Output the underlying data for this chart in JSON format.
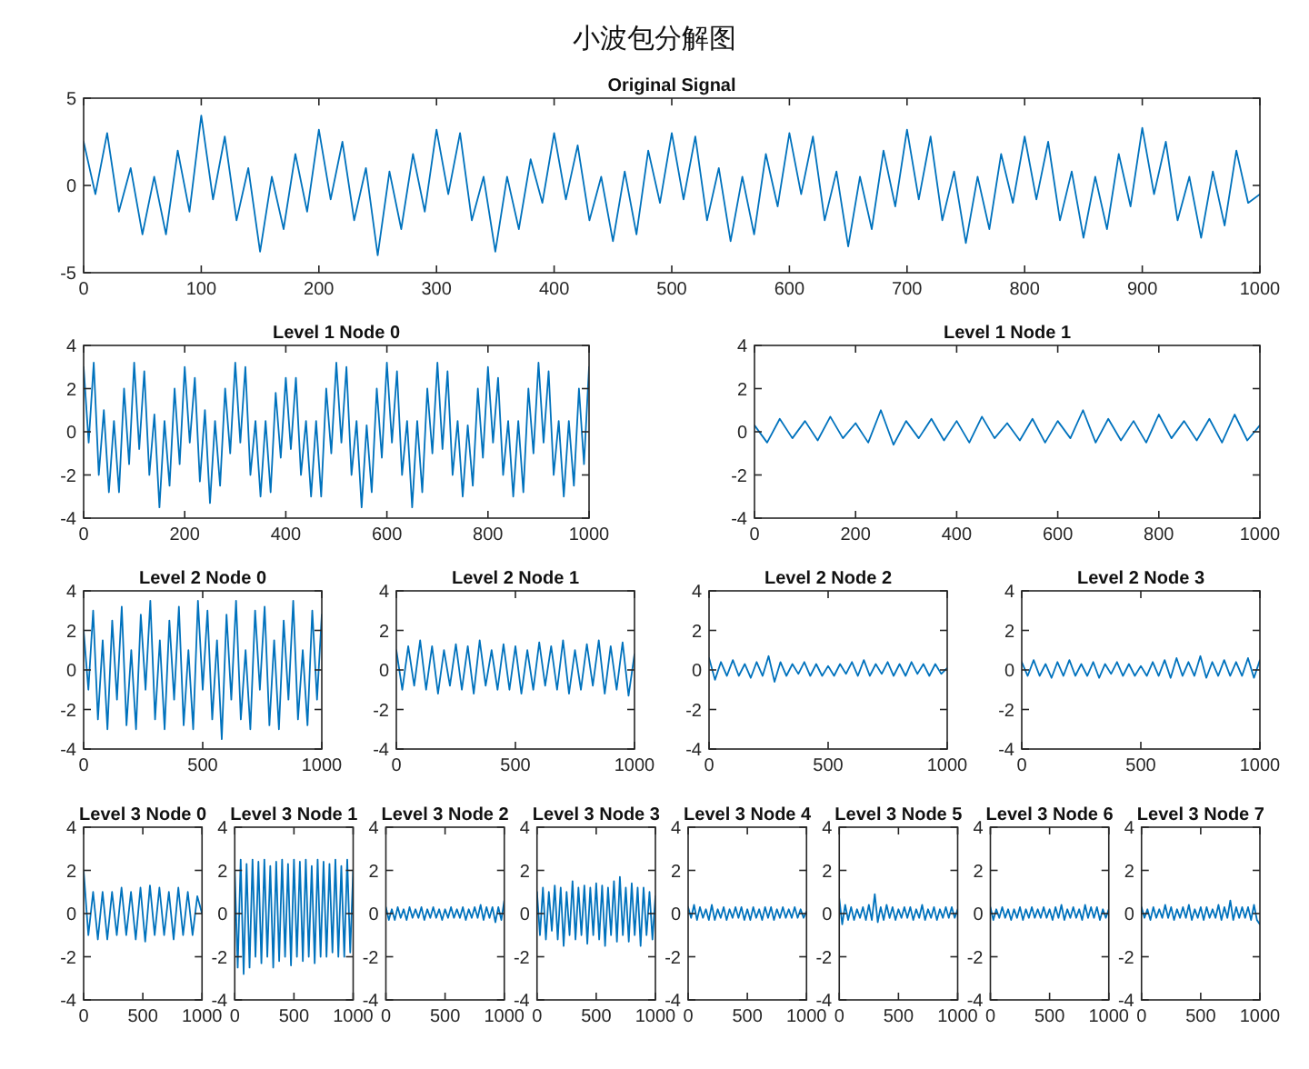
{
  "chart_data": [
    {
      "type": "other",
      "title": "小波包分解图"
    },
    {
      "type": "line",
      "title": "Original Signal",
      "color": "#0072bd",
      "xlim": [
        0,
        1000
      ],
      "ylim": [
        -5,
        5
      ],
      "xticks": [
        0,
        100,
        200,
        300,
        400,
        500,
        600,
        700,
        800,
        900,
        1000
      ],
      "yticks": [
        -5,
        0,
        5
      ],
      "x": [
        0,
        10,
        20,
        30,
        40,
        50,
        60,
        70,
        80,
        90,
        100,
        110,
        120,
        130,
        140,
        150,
        160,
        170,
        180,
        190,
        200,
        210,
        220,
        230,
        240,
        250,
        260,
        270,
        280,
        290,
        300,
        310,
        320,
        330,
        340,
        350,
        360,
        370,
        380,
        390,
        400,
        410,
        420,
        430,
        440,
        450,
        460,
        470,
        480,
        490,
        500,
        510,
        520,
        530,
        540,
        550,
        560,
        570,
        580,
        590,
        600,
        610,
        620,
        630,
        640,
        650,
        660,
        670,
        680,
        690,
        700,
        710,
        720,
        730,
        740,
        750,
        760,
        770,
        780,
        790,
        800,
        810,
        820,
        830,
        840,
        850,
        860,
        870,
        880,
        890,
        900,
        910,
        920,
        930,
        940,
        950,
        960,
        970,
        980,
        990,
        1000
      ],
      "values": [
        2.5,
        -0.5,
        3,
        -1.5,
        1,
        -2.8,
        0.5,
        -2.8,
        2,
        -1.5,
        4,
        -0.8,
        2.8,
        -2,
        1,
        -3.8,
        0.5,
        -2.5,
        1.8,
        -1.5,
        3.2,
        -0.8,
        2.5,
        -2,
        1,
        -4,
        0.8,
        -2.5,
        1.8,
        -1.5,
        3.2,
        -0.5,
        3,
        -2,
        0.5,
        -3.8,
        0.5,
        -2.5,
        1.5,
        -1,
        3,
        -0.8,
        2.3,
        -2,
        0.5,
        -3.2,
        0.8,
        -2.8,
        2,
        -1,
        3,
        -0.8,
        2.8,
        -2,
        1,
        -3.2,
        0.5,
        -2.8,
        1.8,
        -1.2,
        3,
        -0.5,
        2.8,
        -2,
        0.8,
        -3.5,
        0.5,
        -2.5,
        2,
        -1.2,
        3.2,
        -0.8,
        2.8,
        -2,
        0.8,
        -3.3,
        0.5,
        -2.5,
        1.8,
        -1,
        2.8,
        -0.8,
        2.5,
        -2,
        0.8,
        -3,
        0.5,
        -2.5,
        1.8,
        -1.2,
        3.3,
        -0.5,
        2.5,
        -2,
        0.5,
        -3,
        0.8,
        -2.3,
        2,
        -1,
        -0.5
      ]
    },
    {
      "type": "line",
      "title": "Level 1 Node 0",
      "color": "#0072bd",
      "xlim": [
        0,
        1000
      ],
      "ylim": [
        -4,
        4
      ],
      "xticks": [
        0,
        200,
        400,
        600,
        800,
        1000
      ],
      "yticks": [
        -4,
        -2,
        0,
        2,
        4
      ],
      "x": [
        0,
        10,
        20,
        30,
        40,
        50,
        60,
        70,
        80,
        90,
        100,
        110,
        120,
        130,
        140,
        150,
        160,
        170,
        180,
        190,
        200,
        210,
        220,
        230,
        240,
        250,
        260,
        270,
        280,
        290,
        300,
        310,
        320,
        330,
        340,
        350,
        360,
        370,
        380,
        390,
        400,
        410,
        420,
        430,
        440,
        450,
        460,
        470,
        480,
        490,
        500,
        510,
        520,
        530,
        540,
        550,
        560,
        570,
        580,
        590,
        600,
        610,
        620,
        630,
        640,
        650,
        660,
        670,
        680,
        690,
        700,
        710,
        720,
        730,
        740,
        750,
        760,
        770,
        780,
        790,
        800,
        810,
        820,
        830,
        840,
        850,
        860,
        870,
        880,
        890,
        900,
        910,
        920,
        930,
        940,
        950,
        960,
        970,
        980,
        990,
        1000
      ],
      "values": [
        3,
        -0.5,
        3.2,
        -2,
        1,
        -2.8,
        0.5,
        -2.8,
        2,
        -1.5,
        3.2,
        -0.8,
        2.8,
        -2,
        0.8,
        -3.5,
        0.5,
        -2.5,
        2,
        -1.5,
        3,
        -0.5,
        2.5,
        -2.3,
        1,
        -3.3,
        0.5,
        -2.5,
        2,
        -1,
        3.2,
        -0.5,
        3,
        -2,
        0.5,
        -3,
        0.5,
        -2.8,
        1.8,
        -1.2,
        2.5,
        -0.8,
        2.5,
        -2,
        0.5,
        -3,
        0.5,
        -3,
        2,
        -1,
        3.2,
        -0.5,
        3,
        -2,
        0.5,
        -3.5,
        0.3,
        -2.8,
        2,
        -1.2,
        3.2,
        -0.5,
        2.8,
        -2,
        0.5,
        -3.5,
        0.5,
        -2.8,
        2,
        -1,
        3.2,
        -0.8,
        2.8,
        -2,
        0.5,
        -3,
        0.3,
        -2.5,
        2,
        -1.2,
        3,
        -0.5,
        2.5,
        -2,
        0.5,
        -3,
        0.5,
        -2.8,
        2,
        -1,
        3.2,
        -0.5,
        2.8,
        -2,
        0.5,
        -3,
        0.5,
        -2.5,
        2,
        -1.5,
        3
      ]
    },
    {
      "type": "line",
      "title": "Level 1 Node 1",
      "color": "#0072bd",
      "xlim": [
        0,
        1000
      ],
      "ylim": [
        -4,
        4
      ],
      "xticks": [
        0,
        200,
        400,
        600,
        800,
        1000
      ],
      "yticks": [
        -4,
        -2,
        0,
        2,
        4
      ],
      "x": [
        0,
        25,
        50,
        75,
        100,
        125,
        150,
        175,
        200,
        225,
        250,
        275,
        300,
        325,
        350,
        375,
        400,
        425,
        450,
        475,
        500,
        525,
        550,
        575,
        600,
        625,
        650,
        675,
        700,
        725,
        750,
        775,
        800,
        825,
        850,
        875,
        900,
        925,
        950,
        975,
        1000
      ],
      "values": [
        0.3,
        -0.5,
        0.6,
        -0.3,
        0.5,
        -0.4,
        0.7,
        -0.3,
        0.4,
        -0.5,
        1,
        -0.6,
        0.5,
        -0.3,
        0.6,
        -0.4,
        0.5,
        -0.5,
        0.7,
        -0.3,
        0.4,
        -0.4,
        0.6,
        -0.5,
        0.5,
        -0.3,
        1,
        -0.5,
        0.6,
        -0.4,
        0.5,
        -0.5,
        0.8,
        -0.3,
        0.5,
        -0.4,
        0.6,
        -0.5,
        0.8,
        -0.4,
        0.3
      ]
    },
    {
      "type": "line",
      "title": "Level 2 Node 0",
      "color": "#0072bd",
      "xlim": [
        0,
        1000
      ],
      "ylim": [
        -4,
        4
      ],
      "xticks": [
        0,
        500,
        1000
      ],
      "yticks": [
        -4,
        -2,
        0,
        2,
        4
      ],
      "x": [
        0,
        20,
        40,
        60,
        80,
        100,
        120,
        140,
        160,
        180,
        200,
        220,
        240,
        260,
        280,
        300,
        320,
        340,
        360,
        380,
        400,
        420,
        440,
        460,
        480,
        500,
        520,
        540,
        560,
        580,
        600,
        620,
        640,
        660,
        680,
        700,
        720,
        740,
        760,
        780,
        800,
        820,
        840,
        860,
        880,
        900,
        920,
        940,
        960,
        980,
        1000
      ],
      "values": [
        2,
        -1,
        3,
        -2.5,
        1.5,
        -3,
        2.5,
        -1.5,
        3.2,
        -2.8,
        1,
        -3,
        2.8,
        -1,
        3.5,
        -2.5,
        1.5,
        -3,
        2.5,
        -1.5,
        3.2,
        -2.8,
        1,
        -3,
        3.5,
        -1,
        3,
        -2.5,
        1.5,
        -3.5,
        2.8,
        -1.5,
        3.5,
        -2.5,
        1,
        -3,
        3,
        -1,
        3.2,
        -2.8,
        1.5,
        -3,
        2.5,
        -1.5,
        3.5,
        -2.5,
        1,
        -2.8,
        3,
        -1.5,
        2.8
      ]
    },
    {
      "type": "line",
      "title": "Level 2 Node 1",
      "color": "#0072bd",
      "xlim": [
        0,
        1000
      ],
      "ylim": [
        -4,
        4
      ],
      "xticks": [
        0,
        500,
        1000
      ],
      "yticks": [
        -4,
        -2,
        0,
        2,
        4
      ],
      "x": [
        0,
        25,
        50,
        75,
        100,
        125,
        150,
        175,
        200,
        225,
        250,
        275,
        300,
        325,
        350,
        375,
        400,
        425,
        450,
        475,
        500,
        525,
        550,
        575,
        600,
        625,
        650,
        675,
        700,
        725,
        750,
        775,
        800,
        825,
        850,
        875,
        900,
        925,
        950,
        975,
        1000
      ],
      "values": [
        1,
        -1,
        1.2,
        -0.8,
        1.5,
        -1,
        1.2,
        -1.2,
        1,
        -0.8,
        1.3,
        -1,
        1.2,
        -1.2,
        1.5,
        -0.8,
        1,
        -1,
        1.3,
        -1,
        1.2,
        -1.2,
        1,
        -1,
        1.4,
        -0.8,
        1.2,
        -1,
        1.5,
        -1.2,
        1,
        -1,
        1.3,
        -0.8,
        1.5,
        -1.2,
        1.2,
        -1,
        1.4,
        -1.3,
        0.8
      ]
    },
    {
      "type": "line",
      "title": "Level 2 Node 2",
      "color": "#0072bd",
      "xlim": [
        0,
        1000
      ],
      "ylim": [
        -4,
        4
      ],
      "xticks": [
        0,
        500,
        1000
      ],
      "yticks": [
        -4,
        -2,
        0,
        2,
        4
      ],
      "x": [
        0,
        25,
        50,
        75,
        100,
        125,
        150,
        175,
        200,
        225,
        250,
        275,
        300,
        325,
        350,
        375,
        400,
        425,
        450,
        475,
        500,
        525,
        550,
        575,
        600,
        625,
        650,
        675,
        700,
        725,
        750,
        775,
        800,
        825,
        850,
        875,
        900,
        925,
        950,
        975,
        1000
      ],
      "values": [
        0.6,
        -0.5,
        0.4,
        -0.3,
        0.5,
        -0.3,
        0.3,
        -0.4,
        0.4,
        -0.3,
        0.7,
        -0.6,
        0.4,
        -0.3,
        0.3,
        -0.2,
        0.4,
        -0.3,
        0.3,
        -0.3,
        0.2,
        -0.3,
        0.3,
        -0.2,
        0.4,
        -0.3,
        0.5,
        -0.3,
        0.3,
        -0.2,
        0.4,
        -0.3,
        0.3,
        -0.3,
        0.4,
        -0.2,
        0.3,
        -0.3,
        0.3,
        -0.2,
        0.1
      ]
    },
    {
      "type": "line",
      "title": "Level 2 Node 3",
      "color": "#0072bd",
      "xlim": [
        0,
        1000
      ],
      "ylim": [
        -4,
        4
      ],
      "xticks": [
        0,
        500,
        1000
      ],
      "yticks": [
        -4,
        -2,
        0,
        2,
        4
      ],
      "x": [
        0,
        25,
        50,
        75,
        100,
        125,
        150,
        175,
        200,
        225,
        250,
        275,
        300,
        325,
        350,
        375,
        400,
        425,
        450,
        475,
        500,
        525,
        550,
        575,
        600,
        625,
        650,
        675,
        700,
        725,
        750,
        775,
        800,
        825,
        850,
        875,
        900,
        925,
        950,
        975,
        1000
      ],
      "values": [
        0.4,
        -0.3,
        0.5,
        -0.3,
        0.3,
        -0.4,
        0.4,
        -0.3,
        0.5,
        -0.3,
        0.3,
        -0.3,
        0.4,
        -0.4,
        0.3,
        -0.2,
        0.4,
        -0.3,
        0.3,
        -0.3,
        0.2,
        -0.3,
        0.4,
        -0.3,
        0.5,
        -0.4,
        0.6,
        -0.3,
        0.4,
        -0.3,
        0.7,
        -0.4,
        0.4,
        -0.3,
        0.5,
        -0.3,
        0.4,
        -0.3,
        0.6,
        -0.4,
        0.5
      ]
    },
    {
      "type": "line",
      "title": "Level 3 Node 0",
      "color": "#0072bd",
      "xlim": [
        0,
        1000
      ],
      "ylim": [
        -4,
        4
      ],
      "xticks": [
        0,
        500,
        1000
      ],
      "yticks": [
        -4,
        -2,
        0,
        2,
        4
      ],
      "x": [
        0,
        40,
        80,
        120,
        160,
        200,
        240,
        280,
        320,
        360,
        400,
        440,
        480,
        520,
        560,
        600,
        640,
        680,
        720,
        760,
        800,
        840,
        880,
        920,
        960,
        1000
      ],
      "values": [
        2,
        -1,
        1,
        -1.2,
        1,
        -1.2,
        1,
        -1,
        1.2,
        -1,
        1,
        -1.2,
        1.2,
        -1.3,
        1.3,
        -1,
        1.2,
        -1,
        1,
        -1.2,
        1.2,
        -1,
        1,
        -1,
        0.8,
        0
      ]
    },
    {
      "type": "line",
      "title": "Level 3 Node 1",
      "color": "#0072bd",
      "xlim": [
        0,
        1000
      ],
      "ylim": [
        -4,
        4
      ],
      "xticks": [
        0,
        500,
        1000
      ],
      "yticks": [
        -4,
        -2,
        0,
        2,
        4
      ],
      "x": [
        0,
        25,
        50,
        75,
        100,
        125,
        150,
        175,
        200,
        225,
        250,
        275,
        300,
        325,
        350,
        375,
        400,
        425,
        450,
        475,
        500,
        525,
        550,
        575,
        600,
        625,
        650,
        675,
        700,
        725,
        750,
        775,
        800,
        825,
        850,
        875,
        900,
        925,
        950,
        975,
        1000
      ],
      "values": [
        2,
        -2.5,
        2.5,
        -2.8,
        2.3,
        -2.5,
        2.5,
        -2,
        2.4,
        -2.3,
        2.5,
        -2,
        2.2,
        -2.5,
        2.4,
        -2.2,
        2.5,
        -2,
        2.3,
        -2.4,
        2.5,
        -2,
        2.4,
        -2.2,
        2.5,
        -2,
        2.2,
        -2.3,
        2.5,
        -2,
        2.4,
        -2,
        2.3,
        -1.8,
        2.5,
        -2,
        2.2,
        -2,
        2.5,
        -1.8,
        2
      ]
    },
    {
      "type": "line",
      "title": "Level 3 Node 2",
      "color": "#0072bd",
      "xlim": [
        0,
        1000
      ],
      "ylim": [
        -4,
        4
      ],
      "xticks": [
        0,
        500,
        1000
      ],
      "yticks": [
        -4,
        -2,
        0,
        2,
        4
      ],
      "x": [
        0,
        25,
        50,
        75,
        100,
        125,
        150,
        175,
        200,
        225,
        250,
        275,
        300,
        325,
        350,
        375,
        400,
        425,
        450,
        475,
        500,
        525,
        550,
        575,
        600,
        625,
        650,
        675,
        700,
        725,
        750,
        775,
        800,
        825,
        850,
        875,
        900,
        925,
        950,
        975,
        1000
      ],
      "values": [
        0.3,
        -0.3,
        0.2,
        -0.3,
        0.3,
        -0.2,
        0.2,
        -0.3,
        0.3,
        -0.2,
        0.2,
        -0.2,
        0.3,
        -0.3,
        0.2,
        -0.2,
        0.3,
        -0.2,
        0.2,
        -0.3,
        0.2,
        -0.2,
        0.3,
        -0.2,
        0.2,
        -0.2,
        0.3,
        -0.3,
        0.2,
        -0.2,
        0.3,
        -0.2,
        0.4,
        -0.3,
        0.3,
        -0.2,
        0.3,
        -0.4,
        0.3,
        -0.3,
        0.6
      ]
    },
    {
      "type": "line",
      "title": "Level 3 Node 3",
      "color": "#0072bd",
      "xlim": [
        0,
        1000
      ],
      "ylim": [
        -4,
        4
      ],
      "xticks": [
        0,
        500,
        1000
      ],
      "yticks": [
        -4,
        -2,
        0,
        2,
        4
      ],
      "x": [
        0,
        25,
        50,
        75,
        100,
        125,
        150,
        175,
        200,
        225,
        250,
        275,
        300,
        325,
        350,
        375,
        400,
        425,
        450,
        475,
        500,
        525,
        550,
        575,
        600,
        625,
        650,
        675,
        700,
        725,
        750,
        775,
        800,
        825,
        850,
        875,
        900,
        925,
        950,
        975,
        1000
      ],
      "values": [
        1,
        -1,
        1.2,
        -1.2,
        1,
        -0.8,
        1.3,
        -1.2,
        1.2,
        -1.5,
        1,
        -1,
        1.5,
        -1.2,
        1.2,
        -1,
        1.3,
        -1.4,
        1.2,
        -1,
        1.4,
        -1.2,
        1.3,
        -1.5,
        1.2,
        -1,
        1.5,
        -1.3,
        1.7,
        -1,
        1.2,
        -1.3,
        1.4,
        -1,
        1.2,
        -1.5,
        1.2,
        -1,
        1,
        -1.2,
        0.8
      ]
    },
    {
      "type": "line",
      "title": "Level 3 Node 4",
      "color": "#0072bd",
      "xlim": [
        0,
        1000
      ],
      "ylim": [
        -4,
        4
      ],
      "xticks": [
        0,
        500,
        1000
      ],
      "yticks": [
        -4,
        -2,
        0,
        2,
        4
      ],
      "x": [
        0,
        25,
        50,
        75,
        100,
        125,
        150,
        175,
        200,
        225,
        250,
        275,
        300,
        325,
        350,
        375,
        400,
        425,
        450,
        475,
        500,
        525,
        550,
        575,
        600,
        625,
        650,
        675,
        700,
        725,
        750,
        775,
        800,
        825,
        850,
        875,
        900,
        925,
        950,
        975,
        1000
      ],
      "values": [
        0.3,
        -0.2,
        0.4,
        -0.3,
        0.3,
        -0.2,
        0.2,
        -0.3,
        0.4,
        -0.3,
        0.2,
        -0.2,
        0.3,
        -0.3,
        0.2,
        -0.2,
        0.3,
        -0.2,
        0.3,
        -0.3,
        0.2,
        -0.3,
        0.3,
        -0.2,
        0.2,
        -0.3,
        0.3,
        -0.2,
        0.3,
        -0.3,
        0.2,
        -0.2,
        0.3,
        -0.2,
        0.2,
        -0.2,
        0.3,
        -0.2,
        0.2,
        -0.2,
        0.1
      ]
    },
    {
      "type": "line",
      "title": "Level 3 Node 5",
      "color": "#0072bd",
      "xlim": [
        0,
        1000
      ],
      "ylim": [
        -4,
        4
      ],
      "xticks": [
        0,
        500,
        1000
      ],
      "yticks": [
        -4,
        -2,
        0,
        2,
        4
      ],
      "x": [
        0,
        25,
        50,
        75,
        100,
        125,
        150,
        175,
        200,
        225,
        250,
        275,
        300,
        325,
        350,
        375,
        400,
        425,
        450,
        475,
        500,
        525,
        550,
        575,
        600,
        625,
        650,
        675,
        700,
        725,
        750,
        775,
        800,
        825,
        850,
        875,
        900,
        925,
        950,
        975,
        1000
      ],
      "values": [
        0.7,
        -0.5,
        0.4,
        -0.3,
        0.3,
        -0.3,
        0.2,
        -0.2,
        0.3,
        -0.3,
        0.4,
        -0.3,
        0.9,
        -0.4,
        0.3,
        -0.3,
        0.4,
        -0.2,
        0.3,
        -0.3,
        0.2,
        -0.2,
        0.3,
        -0.2,
        0.3,
        -0.3,
        0.2,
        -0.2,
        0.4,
        -0.3,
        0.2,
        -0.2,
        0.3,
        -0.3,
        0.2,
        -0.2,
        0.3,
        -0.2,
        0.3,
        -0.2,
        0.2
      ]
    },
    {
      "type": "line",
      "title": "Level 3 Node 6",
      "color": "#0072bd",
      "xlim": [
        0,
        1000
      ],
      "ylim": [
        -4,
        4
      ],
      "xticks": [
        0,
        500,
        1000
      ],
      "yticks": [
        -4,
        -2,
        0,
        2,
        4
      ],
      "x": [
        0,
        25,
        50,
        75,
        100,
        125,
        150,
        175,
        200,
        225,
        250,
        275,
        300,
        325,
        350,
        375,
        400,
        425,
        450,
        475,
        500,
        525,
        550,
        575,
        600,
        625,
        650,
        675,
        700,
        725,
        750,
        775,
        800,
        825,
        850,
        875,
        900,
        925,
        950,
        975,
        1000
      ],
      "values": [
        0.3,
        -0.3,
        0.2,
        -0.2,
        0.3,
        -0.2,
        0.2,
        -0.3,
        0.2,
        -0.2,
        0.3,
        -0.3,
        0.2,
        -0.2,
        0.3,
        -0.2,
        0.2,
        -0.2,
        0.3,
        -0.2,
        0.2,
        -0.3,
        0.3,
        -0.2,
        0.4,
        -0.3,
        0.2,
        -0.2,
        0.3,
        -0.2,
        0.2,
        -0.3,
        0.4,
        -0.2,
        0.3,
        -0.2,
        0.3,
        -0.3,
        0.2,
        -0.2,
        0.2
      ]
    },
    {
      "type": "line",
      "title": "Level 3 Node 7",
      "color": "#0072bd",
      "xlim": [
        0,
        1000
      ],
      "ylim": [
        -4,
        4
      ],
      "xticks": [
        0,
        500,
        1000
      ],
      "yticks": [
        -4,
        -2,
        0,
        2,
        4
      ],
      "x": [
        0,
        25,
        50,
        75,
        100,
        125,
        150,
        175,
        200,
        225,
        250,
        275,
        300,
        325,
        350,
        375,
        400,
        425,
        450,
        475,
        500,
        525,
        550,
        575,
        600,
        625,
        650,
        675,
        700,
        725,
        750,
        775,
        800,
        825,
        850,
        875,
        900,
        925,
        950,
        975,
        1000
      ],
      "values": [
        0.3,
        -0.2,
        0.2,
        -0.3,
        0.3,
        -0.2,
        0.2,
        -0.2,
        0.4,
        -0.2,
        0.3,
        -0.3,
        0.2,
        -0.2,
        0.3,
        -0.2,
        0.4,
        -0.3,
        0.2,
        -0.2,
        0.3,
        -0.3,
        0.3,
        -0.2,
        0.2,
        -0.2,
        0.4,
        -0.3,
        0.3,
        -0.2,
        0.6,
        -0.3,
        0.3,
        -0.2,
        0.3,
        -0.2,
        0.3,
        -0.3,
        0.4,
        -0.3,
        -0.5
      ]
    }
  ]
}
